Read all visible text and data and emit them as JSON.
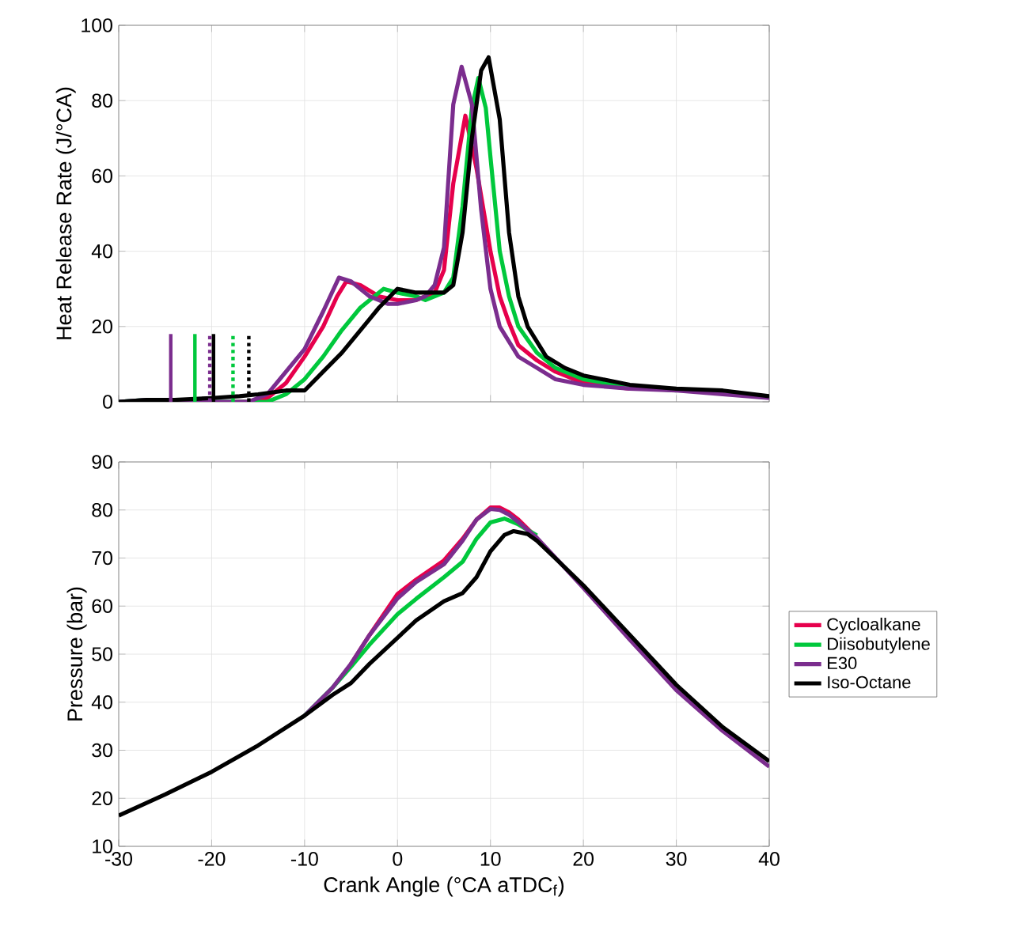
{
  "chart_data": [
    {
      "type": "line",
      "ylabel": "Heat Release Rate (J/°CA)",
      "xlim": [
        -30,
        40
      ],
      "ylim": [
        0,
        100
      ],
      "xticks": [
        -30,
        -20,
        -10,
        0,
        10,
        20,
        30,
        40
      ],
      "yticks": [
        0,
        20,
        40,
        60,
        80,
        100
      ],
      "grid": true,
      "tick_labels": "y",
      "series": [
        {
          "color": "#e6004c",
          "x": [
            -18,
            -16,
            -14,
            -12,
            -10,
            -8,
            -6.5,
            -5.5,
            -4,
            -2,
            0,
            2,
            3,
            4,
            5,
            6,
            7.3,
            8.5,
            10,
            11,
            12,
            13,
            15,
            17,
            20,
            25
          ],
          "values": [
            0,
            0,
            1,
            5,
            12,
            20,
            28,
            32,
            31,
            28,
            27,
            27,
            28,
            29,
            35,
            58,
            76,
            62,
            40,
            28,
            21,
            15,
            11,
            8,
            5,
            3.5
          ]
        },
        {
          "color": "#00c83c",
          "x": [
            -30,
            -27,
            -24,
            -20,
            -18,
            -16,
            -14,
            -12,
            -10,
            -8,
            -6,
            -4,
            -2,
            -1.5,
            0,
            2,
            3,
            4,
            5,
            6,
            7,
            8,
            8.7,
            9.5,
            10,
            11,
            12,
            13,
            15,
            17,
            20,
            25,
            30
          ],
          "values": [
            0,
            0.5,
            0,
            0,
            0,
            0,
            0,
            2,
            6,
            12,
            19,
            25,
            29,
            30,
            29,
            28,
            27,
            28,
            29,
            33,
            52,
            78,
            86,
            78,
            65,
            40,
            28,
            20,
            13,
            9,
            6,
            4,
            3
          ]
        },
        {
          "color": "#7b2d8e",
          "x": [
            -30,
            -27,
            -24,
            -20,
            -18,
            -16,
            -14,
            -12,
            -10,
            -8,
            -6.3,
            -5,
            -3,
            -1,
            0,
            2,
            3,
            4,
            5,
            6,
            6.9,
            8,
            9,
            10,
            11,
            12,
            13,
            15,
            17,
            20,
            25,
            30,
            35,
            40
          ],
          "values": [
            0,
            0.5,
            0,
            0,
            0,
            0,
            2,
            8,
            14,
            24,
            33,
            32,
            28,
            26,
            26,
            27,
            28,
            31,
            41,
            79,
            89,
            79,
            51,
            30,
            20,
            16,
            12,
            9,
            6,
            4.5,
            3.5,
            3,
            2,
            1
          ]
        },
        {
          "color": "#000000",
          "x": [
            -30,
            -27,
            -24,
            -20,
            -17,
            -15,
            -12,
            -10,
            -8,
            -6,
            -5,
            -3,
            -2,
            0,
            2,
            3,
            5,
            6,
            7,
            8,
            9,
            9.8,
            11,
            12,
            13,
            14,
            16,
            18,
            20,
            25,
            30,
            35,
            40
          ],
          "values": [
            0,
            0.5,
            0.5,
            1,
            1.5,
            2,
            3,
            3,
            8,
            13,
            16,
            22,
            25,
            30,
            29,
            29,
            29,
            31,
            45,
            70,
            88,
            91.5,
            75,
            45,
            28,
            20,
            12,
            9,
            7,
            4.5,
            3.5,
            3,
            1.5
          ]
        },
        {
          "color": "#7b2d8e",
          "x": [
            -24.4,
            -24.4
          ],
          "values": [
            0,
            18
          ]
        },
        {
          "color": "#00c83c",
          "x": [
            -21.8,
            -21.8
          ],
          "values": [
            0,
            18
          ]
        },
        {
          "color": "#000000",
          "x": [
            -19.8,
            -19.8
          ],
          "values": [
            0,
            18
          ]
        },
        {
          "color": "#7b2d8e",
          "x": [
            -20.2,
            -20.2
          ],
          "values": [
            0,
            18
          ],
          "line_style": "dotted"
        },
        {
          "color": "#00c83c",
          "x": [
            -17.7,
            -17.7
          ],
          "values": [
            0,
            18
          ],
          "line_style": "dotted"
        },
        {
          "color": "#000000",
          "x": [
            -16,
            -16
          ],
          "values": [
            0,
            18
          ],
          "line_style": "dotted"
        }
      ]
    },
    {
      "type": "line",
      "xlabel": "Crank Angle (°CA aTDC$_{f}$)",
      "ylabel": "Pressure (bar)",
      "xlim": [
        -30,
        40
      ],
      "ylim": [
        10,
        90
      ],
      "xticks": [
        -30,
        -20,
        -10,
        0,
        10,
        20,
        30,
        40
      ],
      "yticks": [
        10,
        20,
        30,
        40,
        50,
        60,
        70,
        80,
        90
      ],
      "grid": true,
      "legend": "right",
      "series": [
        {
          "name": "Cycloalkane",
          "color": "#e6004c",
          "x": [
            -5,
            -3,
            0,
            2,
            5,
            7,
            8.5,
            10,
            11,
            12,
            13,
            15
          ],
          "values": [
            48,
            54,
            62.5,
            65.5,
            69.5,
            74,
            78,
            80.5,
            80.5,
            79.5,
            78,
            74.2
          ]
        },
        {
          "name": "Diisobutylene",
          "color": "#00c83c",
          "x": [
            -10,
            -7,
            -5,
            -3,
            0,
            2,
            5,
            7,
            8.5,
            10,
            11.5,
            13,
            15
          ],
          "values": [
            37.2,
            43,
            47.4,
            52,
            58.3,
            61.5,
            66,
            69.2,
            74,
            77.4,
            78.2,
            77,
            74.7
          ]
        },
        {
          "name": "E30",
          "color": "#7b2d8e",
          "x": [
            -10,
            -7,
            -5,
            -3,
            0,
            2,
            5,
            7,
            8.5,
            10,
            11,
            12,
            13,
            15,
            17.5,
            20,
            25,
            30,
            35,
            40
          ],
          "values": [
            37.2,
            43,
            48,
            54,
            61.6,
            65,
            68.7,
            73.6,
            78,
            80.2,
            80,
            79,
            77.5,
            74.2,
            69,
            63.8,
            53,
            42.5,
            34,
            26.6
          ]
        },
        {
          "name": "Iso-Octane",
          "color": "#000000",
          "x": [
            -30,
            -25,
            -20,
            -15,
            -10,
            -7,
            -5,
            -3,
            0,
            2,
            5,
            7,
            8.5,
            10,
            11.5,
            12.5,
            14,
            15,
            17.5,
            20,
            25,
            30,
            35,
            40
          ],
          "values": [
            16.4,
            20.8,
            25.5,
            31,
            37.2,
            41.5,
            44,
            48,
            53.4,
            57,
            61,
            62.7,
            66,
            71.4,
            74.8,
            75.6,
            75,
            73.6,
            69,
            64.3,
            54,
            43.6,
            34.8,
            27.7
          ]
        }
      ]
    }
  ]
}
